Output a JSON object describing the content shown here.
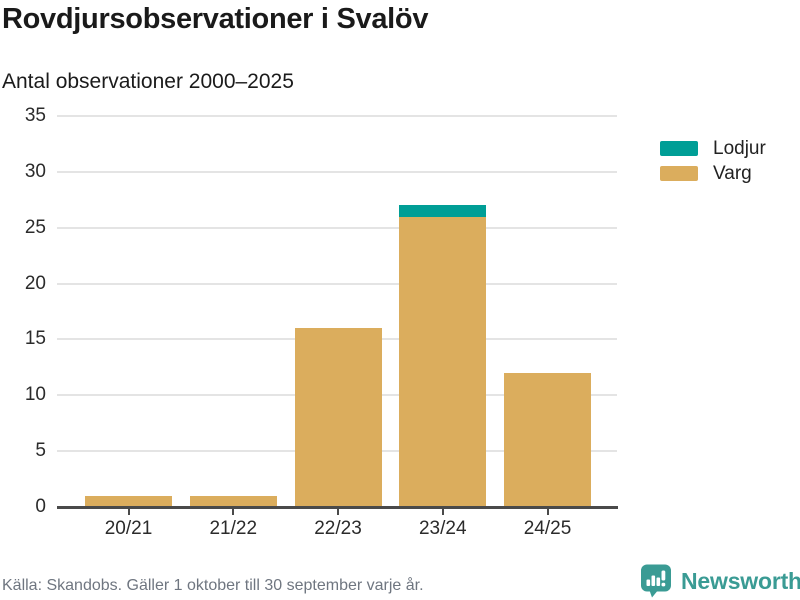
{
  "header": {
    "title": "Rovdjursobservationer i Svalöv",
    "subtitle": "Antal observationer 2000–2025"
  },
  "chart_data": {
    "type": "bar",
    "stacked": true,
    "title": "Rovdjursobservationer i Svalöv",
    "subtitle": "Antal observationer 2000–2025",
    "categories": [
      "20/21",
      "21/22",
      "22/23",
      "23/24",
      "24/25"
    ],
    "series": [
      {
        "name": "Lodjur",
        "color": "#009e96",
        "values": [
          0,
          0,
          0,
          1,
          0
        ]
      },
      {
        "name": "Varg",
        "color": "#dbad5d",
        "values": [
          1,
          1,
          16,
          26,
          12
        ]
      }
    ],
    "totals": [
      1,
      1,
      16,
      27,
      12
    ],
    "xlabel": "",
    "ylabel": "Antal observationer",
    "ylim": [
      0,
      35
    ],
    "yticks": [
      0,
      5,
      10,
      15,
      20,
      25,
      30,
      35
    ],
    "grid": true,
    "legend_position": "right"
  },
  "legend": {
    "items": [
      {
        "label": "Lodjur",
        "color": "#009e96"
      },
      {
        "label": "Varg",
        "color": "#dbad5d"
      }
    ]
  },
  "footer": {
    "source": "Källa: Skandobs. Gäller 1 oktober till 30 september varje år.",
    "brand": "Newsworthy"
  },
  "colors": {
    "lodjur": "#009e96",
    "varg": "#dbad5d",
    "gridline": "#e4e4e4",
    "axis": "#4a4a4a",
    "brand_teal": "#3a9b94",
    "source_text": "#6f7680"
  }
}
